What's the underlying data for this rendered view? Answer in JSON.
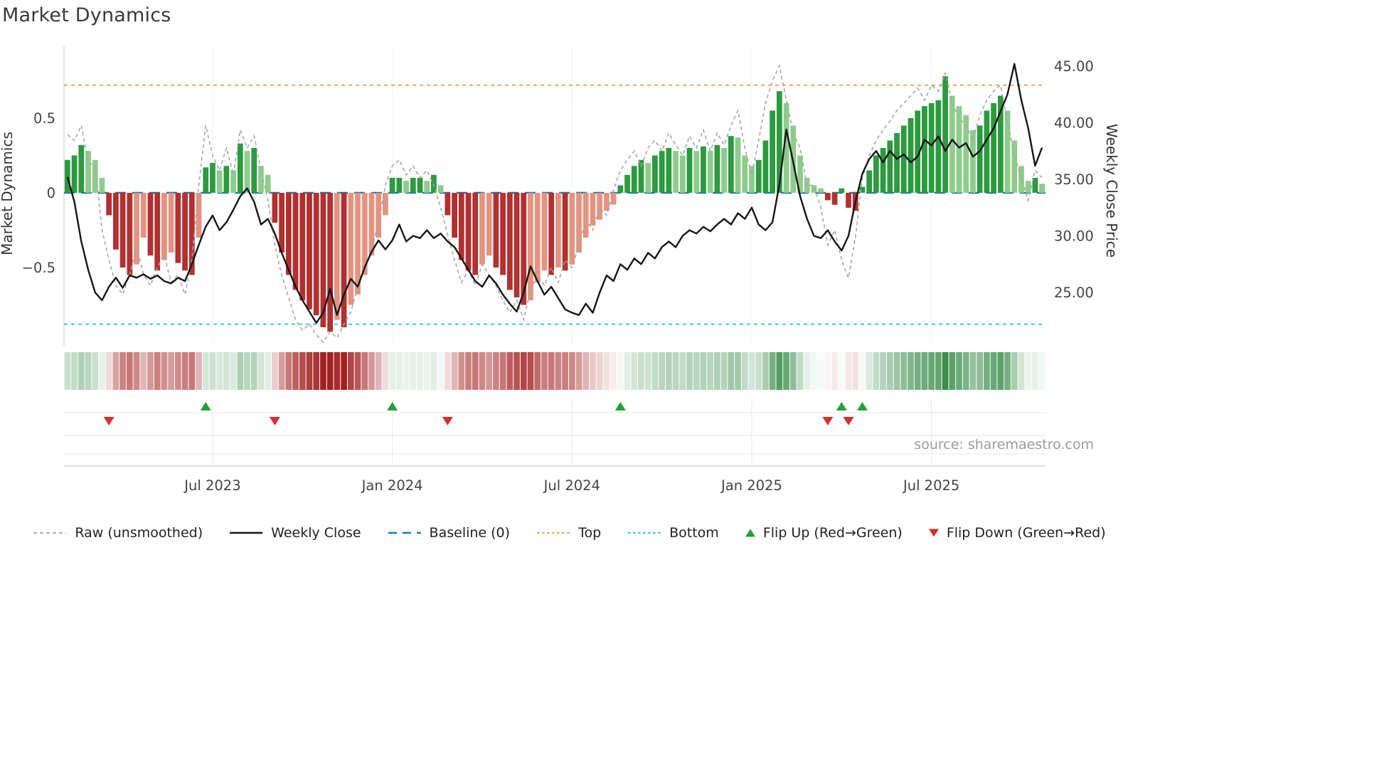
{
  "page": {
    "title": "Market Dynamics",
    "source": "source: sharemaestro.com"
  },
  "legend": {
    "items": [
      {
        "label": "Raw (unsmoothed)"
      },
      {
        "label": "Weekly Close"
      },
      {
        "label": "Baseline (0)"
      },
      {
        "label": "Top"
      },
      {
        "label": "Bottom"
      },
      {
        "label": "Flip Up (Red→Green)"
      },
      {
        "label": "Flip Down (Green→Red)"
      }
    ]
  },
  "chart_data": {
    "type": "bar",
    "subtype": "oscillator-bars-with-dual-axis-lines-heatmap-and-flip-markers",
    "title": "Market Dynamics",
    "n_points": 142,
    "left_axis": {
      "label": "Market Dynamics",
      "range": [
        -1.05,
        0.9
      ],
      "ticks": [
        {
          "value": -0.5,
          "label": "−0.5"
        },
        {
          "value": 0,
          "label": "0"
        },
        {
          "value": 0.5,
          "label": "0.5"
        }
      ]
    },
    "right_axis": {
      "label": "Weekly Close Price",
      "range": [
        20.5,
        46.5
      ],
      "ticks": [
        {
          "value": 25,
          "label": "25.00"
        },
        {
          "value": 30,
          "label": "30.00"
        },
        {
          "value": 35,
          "label": "35.00"
        },
        {
          "value": 40,
          "label": "40.00"
        },
        {
          "value": 45,
          "label": "45.00"
        }
      ]
    },
    "x_ticks": [
      {
        "index": 21,
        "label": "Jul 2023"
      },
      {
        "index": 47,
        "label": "Jan 2024"
      },
      {
        "index": 73,
        "label": "Jul 2024"
      },
      {
        "index": 99,
        "label": "Jan 2025"
      },
      {
        "index": 125,
        "label": "Jul 2025"
      }
    ],
    "reference_lines": {
      "baseline": 0,
      "top": 0.72,
      "bottom": -0.88
    },
    "bars": {
      "name": "Market Dynamics oscillator (smoothed, weekly)",
      "values": [
        0.22,
        0.25,
        0.32,
        0.28,
        0.22,
        0.1,
        -0.15,
        -0.38,
        -0.5,
        -0.55,
        -0.48,
        -0.3,
        -0.42,
        -0.52,
        -0.45,
        -0.4,
        -0.47,
        -0.52,
        -0.55,
        -0.3,
        0.17,
        0.2,
        0.15,
        0.18,
        0.15,
        0.33,
        0.28,
        0.3,
        0.18,
        0.12,
        -0.2,
        -0.4,
        -0.55,
        -0.65,
        -0.72,
        -0.78,
        -0.82,
        -0.9,
        -0.93,
        -0.85,
        -0.9,
        -0.75,
        -0.68,
        -0.55,
        -0.42,
        -0.3,
        -0.15,
        0.1,
        0.1,
        0.08,
        0.1,
        0.1,
        0.08,
        0.12,
        0.05,
        -0.15,
        -0.3,
        -0.45,
        -0.52,
        -0.55,
        -0.48,
        -0.42,
        -0.5,
        -0.55,
        -0.65,
        -0.7,
        -0.75,
        -0.72,
        -0.6,
        -0.52,
        -0.55,
        -0.5,
        -0.52,
        -0.48,
        -0.4,
        -0.3,
        -0.22,
        -0.18,
        -0.12,
        -0.08,
        0.05,
        0.12,
        0.18,
        0.22,
        0.2,
        0.25,
        0.28,
        0.3,
        0.28,
        0.25,
        0.3,
        0.28,
        0.31,
        0.28,
        0.32,
        0.3,
        0.38,
        0.37,
        0.25,
        0.18,
        0.22,
        0.35,
        0.55,
        0.68,
        0.6,
        0.45,
        0.25,
        0.1,
        0.05,
        0.03,
        -0.05,
        -0.08,
        0.03,
        -0.1,
        -0.12,
        0.04,
        0.15,
        0.25,
        0.3,
        0.35,
        0.4,
        0.45,
        0.5,
        0.55,
        0.58,
        0.6,
        0.62,
        0.78,
        0.65,
        0.58,
        0.52,
        0.42,
        0.45,
        0.55,
        0.6,
        0.65,
        0.55,
        0.35,
        0.18,
        0.08,
        0.1,
        0.06
      ]
    },
    "raw_line": {
      "name": "Raw (unsmoothed)",
      "style": "dashed",
      "values": [
        0.39,
        0.35,
        0.45,
        0.2,
        0.18,
        -0.25,
        -0.45,
        -0.62,
        -0.68,
        -0.55,
        -0.35,
        -0.55,
        -0.62,
        -0.5,
        -0.42,
        -0.6,
        -0.55,
        -0.68,
        -0.45,
        0.05,
        0.45,
        0.25,
        0.15,
        0.3,
        0.12,
        0.42,
        0.3,
        0.38,
        0.15,
        -0.05,
        -0.35,
        -0.55,
        -0.7,
        -0.85,
        -0.92,
        -0.88,
        -0.95,
        -1.0,
        -0.93,
        -0.97,
        -0.88,
        -0.8,
        -0.62,
        -0.5,
        -0.38,
        -0.2,
        0.05,
        0.18,
        0.22,
        0.12,
        0.18,
        0.1,
        0.15,
        0.05,
        -0.1,
        -0.28,
        -0.45,
        -0.6,
        -0.52,
        -0.62,
        -0.48,
        -0.55,
        -0.62,
        -0.72,
        -0.8,
        -0.72,
        -0.85,
        -0.65,
        -0.55,
        -0.62,
        -0.5,
        -0.6,
        -0.45,
        -0.5,
        -0.35,
        -0.18,
        -0.25,
        -0.1,
        -0.15,
        0.02,
        0.15,
        0.22,
        0.28,
        0.18,
        0.3,
        0.35,
        0.28,
        0.4,
        0.32,
        0.25,
        0.38,
        0.3,
        0.42,
        0.28,
        0.4,
        0.32,
        0.45,
        0.55,
        0.3,
        0.12,
        0.35,
        0.6,
        0.75,
        0.85,
        0.62,
        0.4,
        0.3,
        0.05,
        0.05,
        -0.1,
        -0.35,
        -0.25,
        -0.45,
        -0.57,
        -0.3,
        0.1,
        0.25,
        0.35,
        0.42,
        0.48,
        0.55,
        0.6,
        0.65,
        0.7,
        0.62,
        0.72,
        0.68,
        0.8,
        0.6,
        0.5,
        0.45,
        0.35,
        0.52,
        0.62,
        0.68,
        0.72,
        0.48,
        0.25,
        0.1,
        -0.05,
        0.15,
        0.1
      ]
    },
    "price_line": {
      "name": "Weekly Close",
      "axis": "right",
      "values": [
        35.2,
        33.0,
        29.5,
        27.0,
        25.0,
        24.3,
        25.5,
        26.3,
        25.4,
        26.5,
        26.3,
        26.6,
        26.2,
        26.5,
        26.0,
        25.8,
        26.3,
        26.0,
        27.5,
        29.2,
        30.8,
        31.8,
        30.5,
        31.2,
        32.3,
        33.5,
        34.2,
        33.0,
        31.0,
        31.5,
        30.2,
        28.5,
        27.0,
        25.5,
        24.3,
        23.3,
        22.3,
        23.2,
        25.3,
        23.0,
        24.8,
        26.2,
        25.5,
        27.2,
        28.6,
        29.6,
        28.8,
        29.6,
        31.0,
        29.5,
        30.0,
        29.8,
        30.5,
        29.8,
        30.2,
        29.5,
        29.0,
        28.0,
        27.0,
        26.0,
        25.5,
        26.5,
        25.8,
        24.8,
        24.0,
        23.3,
        25.0,
        27.3,
        26.0,
        24.8,
        25.5,
        24.5,
        23.5,
        23.2,
        23.0,
        24.0,
        23.2,
        25.0,
        26.5,
        26.0,
        27.5,
        27.0,
        28.0,
        27.5,
        28.5,
        28.0,
        29.0,
        29.5,
        29.0,
        30.0,
        30.5,
        30.2,
        30.8,
        30.4,
        31.0,
        31.5,
        31.0,
        32.0,
        31.5,
        32.5,
        31.0,
        30.5,
        31.2,
        34.5,
        39.4,
        36.5,
        33.5,
        31.5,
        30.0,
        29.8,
        30.5,
        29.5,
        28.7,
        30.0,
        33.0,
        35.5,
        36.8,
        37.5,
        36.5,
        37.5,
        36.8,
        37.2,
        36.5,
        37.0,
        38.5,
        38.0,
        38.8,
        37.5,
        38.5,
        37.8,
        38.2,
        37.0,
        37.5,
        38.5,
        39.5,
        41.0,
        42.5,
        45.2,
        42.0,
        39.5,
        36.2,
        37.8
      ]
    },
    "heatmap": {
      "note": "color strip mirrors the oscillator bar values",
      "values_from": "bars"
    },
    "flip_up_indices": [
      20,
      47,
      80,
      112,
      115
    ],
    "flip_down_indices": [
      6,
      30,
      55,
      110,
      113
    ],
    "colors": {
      "bar_green_dark": "#2c9a3f",
      "bar_green_light": "#8ecc8c",
      "bar_red_dark": "#b23030",
      "bar_red_light": "#e39480",
      "baseline": "#1f77b4",
      "top": "#f2a454",
      "bottom": "#45c5ec",
      "raw": "#a6a6a6",
      "price": "#161616",
      "flip_up": "#21a038",
      "flip_down": "#d62f2f",
      "heat_green": "#1d7c31",
      "heat_red": "#a32020"
    },
    "grid": true,
    "legend_position": "bottom"
  }
}
